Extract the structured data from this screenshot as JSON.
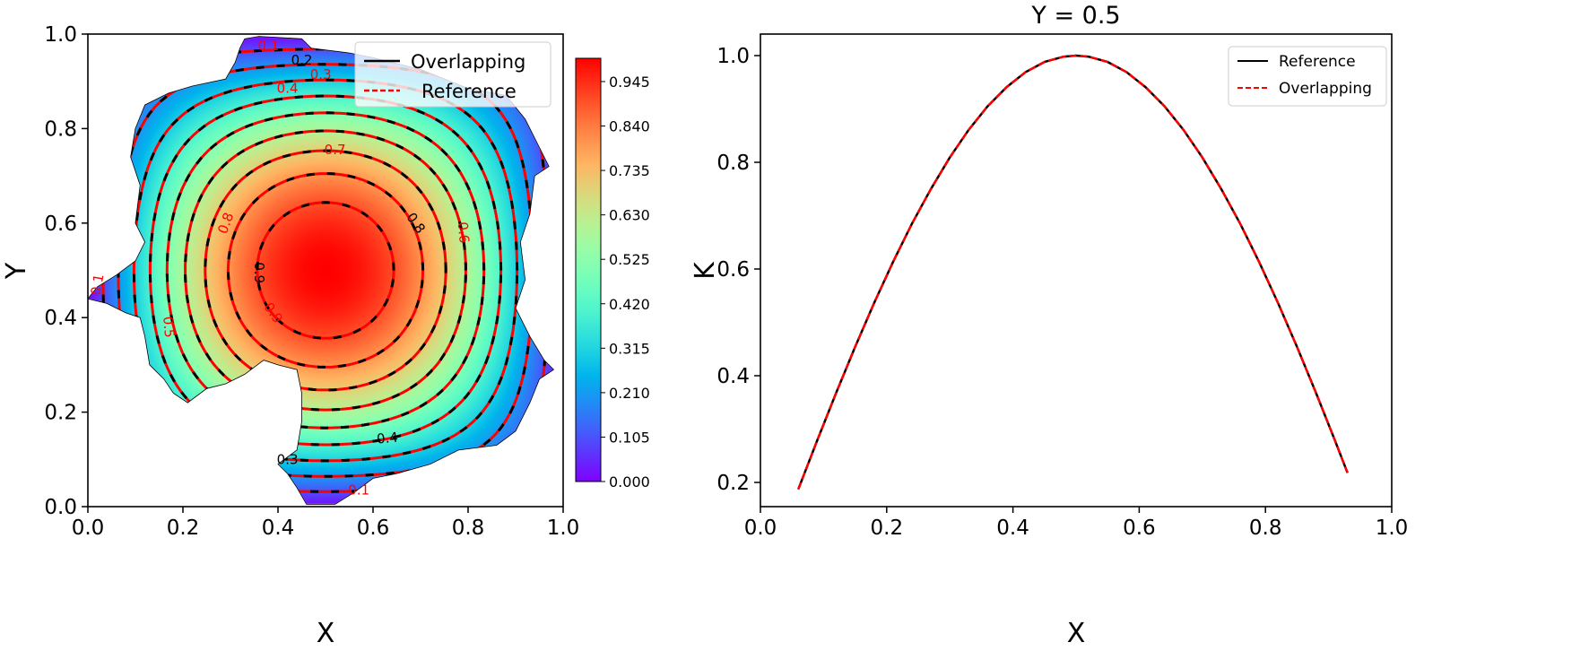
{
  "chart_data": [
    {
      "type": "heatmap",
      "title": "",
      "xlabel": "X",
      "ylabel": "Y",
      "xlim": [
        0.0,
        1.0
      ],
      "ylim": [
        0.0,
        1.0
      ],
      "xticks": [
        "0.0",
        "0.2",
        "0.4",
        "0.6",
        "0.8",
        "1.0"
      ],
      "yticks": [
        "0.0",
        "0.2",
        "0.4",
        "0.6",
        "0.8",
        "1.0"
      ],
      "field": "K = sin(pi*X) * sin(pi*Y)",
      "colormap": "rainbow",
      "colorbar": {
        "range": [
          0.0,
          1.0
        ],
        "ticks": [
          "0.000",
          "0.105",
          "0.210",
          "0.315",
          "0.420",
          "0.525",
          "0.630",
          "0.735",
          "0.840",
          "0.945"
        ]
      },
      "contour_levels": [
        0.1,
        0.2,
        0.3,
        0.4,
        0.5,
        0.6,
        0.7,
        0.8,
        0.9
      ],
      "contour_labels": [
        {
          "text": "0.1",
          "color": "#ff0000"
        },
        {
          "text": "0.2",
          "color": "#000000"
        },
        {
          "text": "0.3",
          "color": "#ff0000"
        },
        {
          "text": "0.4",
          "color": "#ff0000"
        },
        {
          "text": "0.7",
          "color": "#ff0000"
        },
        {
          "text": "0.8",
          "color": "#ff0000"
        },
        {
          "text": "0.8",
          "color": "#000000"
        },
        {
          "text": "0.6",
          "color": "#ff0000"
        },
        {
          "text": "0.9",
          "color": "#000000"
        },
        {
          "text": "0.9",
          "color": "#ff0000"
        },
        {
          "text": "0.5",
          "color": "#ff0000"
        },
        {
          "text": "0.1",
          "color": "#ff0000"
        },
        {
          "text": "0.4",
          "color": "#000000"
        },
        {
          "text": "0.3",
          "color": "#000000"
        },
        {
          "text": "0.1",
          "color": "#ff0000"
        }
      ],
      "legend": {
        "placement": "upper-right",
        "entries": [
          {
            "label": "Overlapping",
            "color": "#000000",
            "style": "solid"
          },
          {
            "label": "Reference",
            "color": "#ff0000",
            "style": "dashed"
          }
        ]
      }
    },
    {
      "type": "line",
      "title": "Y = 0.5",
      "xlabel": "X",
      "ylabel": "K",
      "xlim": [
        0.0,
        1.0
      ],
      "ylim": [
        0.155,
        1.04
      ],
      "xticks": [
        "0.0",
        "0.2",
        "0.4",
        "0.6",
        "0.8",
        "1.0"
      ],
      "yticks": [
        "0.2",
        "0.4",
        "0.6",
        "0.8",
        "1.0"
      ],
      "x": [
        0.06,
        0.09,
        0.12,
        0.15,
        0.18,
        0.21,
        0.24,
        0.27,
        0.3,
        0.33,
        0.36,
        0.39,
        0.42,
        0.45,
        0.48,
        0.5,
        0.52,
        0.55,
        0.58,
        0.61,
        0.64,
        0.67,
        0.7,
        0.73,
        0.76,
        0.79,
        0.82,
        0.85,
        0.88,
        0.91,
        0.93
      ],
      "series": [
        {
          "name": "Reference",
          "color": "#000000",
          "style": "solid",
          "values": [
            0.187,
            0.279,
            0.368,
            0.454,
            0.536,
            0.613,
            0.685,
            0.75,
            0.809,
            0.861,
            0.905,
            0.941,
            0.969,
            0.988,
            0.998,
            1.0,
            0.998,
            0.988,
            0.969,
            0.941,
            0.905,
            0.861,
            0.809,
            0.75,
            0.685,
            0.613,
            0.536,
            0.454,
            0.368,
            0.279,
            0.218
          ]
        },
        {
          "name": "Overlapping",
          "color": "#ff0000",
          "style": "dashed",
          "values": [
            0.187,
            0.279,
            0.368,
            0.454,
            0.536,
            0.613,
            0.685,
            0.75,
            0.809,
            0.861,
            0.905,
            0.941,
            0.969,
            0.988,
            0.998,
            1.0,
            0.998,
            0.988,
            0.969,
            0.941,
            0.905,
            0.861,
            0.809,
            0.75,
            0.685,
            0.613,
            0.536,
            0.454,
            0.368,
            0.279,
            0.218
          ]
        }
      ],
      "legend": {
        "placement": "upper-right"
      }
    }
  ]
}
